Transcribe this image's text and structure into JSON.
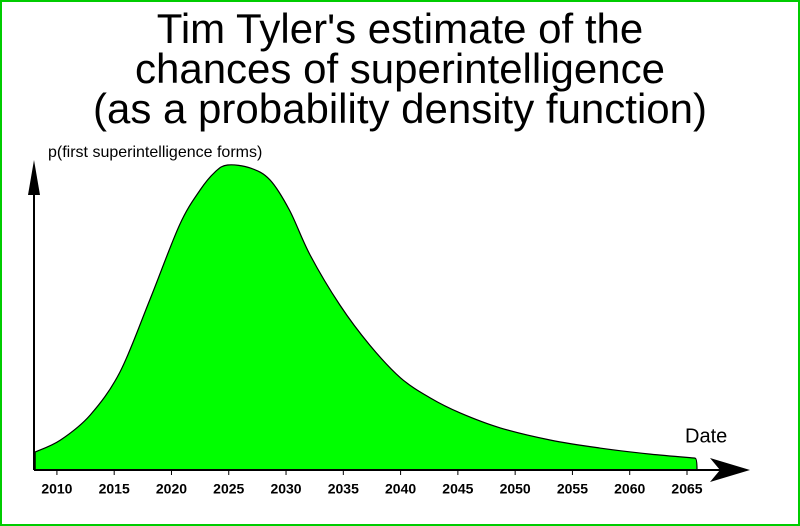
{
  "chart_data": {
    "type": "area",
    "title": [
      "Tim Tyler's estimate of the",
      "chances of superintelligence",
      "(as a probability density function)"
    ],
    "y_label": "p(first superintelligence forms)",
    "x_label": "Date",
    "x": [
      2008.1,
      2010.3,
      2012.9,
      2015.5,
      2018.1,
      2020.7,
      2022.5,
      2023.8,
      2024.9,
      2026.9,
      2028.6,
      2030.3,
      2032.1,
      2034.7,
      2037.3,
      2040,
      2042.6,
      2045.2,
      2048.7,
      2053.1,
      2057.4,
      2061.8,
      2065.7
    ],
    "values": [
      5.9,
      9.8,
      18,
      32.1,
      55.7,
      80.3,
      91.8,
      97.7,
      100,
      99,
      95.1,
      85.2,
      70.5,
      54.1,
      41,
      30.2,
      23.6,
      18.7,
      13.8,
      9.8,
      7.2,
      5.2,
      3.9
    ],
    "color": "#00ff00",
    "xlim": [
      2008,
      2070.5
    ],
    "xticks": [
      2010,
      2015,
      2020,
      2025,
      2030,
      2035,
      2040,
      2045,
      2050,
      2055,
      2060,
      2065
    ],
    "ylim": [
      0,
      100
    ]
  }
}
